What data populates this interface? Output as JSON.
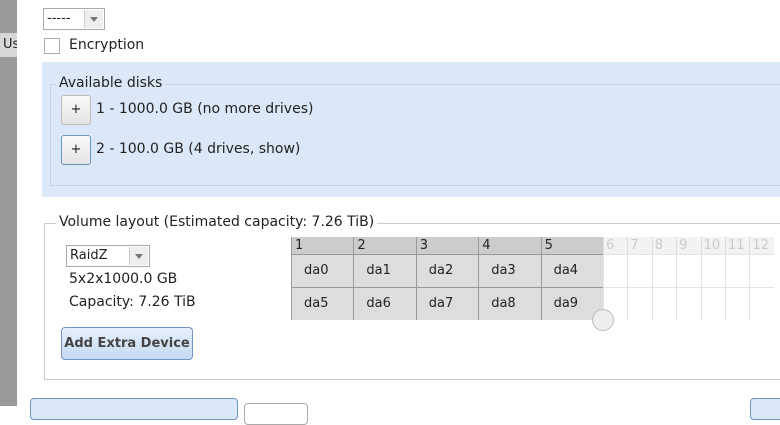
{
  "sidebar": {
    "text": "Us"
  },
  "top_select": {
    "value": "-----"
  },
  "encryption": {
    "label": "Encryption"
  },
  "available_disks": {
    "legend": "Available disks",
    "button": "+",
    "items": [
      "1 - 1000.0 GB (no more drives)",
      "2 - 100.0 GB (4 drives, show)"
    ]
  },
  "volume_layout": {
    "legend": "Volume layout (Estimated capacity: 7.26 TiB)",
    "raid_select": "RaidZ",
    "summary": "5x2x1000.0 GB",
    "capacity": "Capacity: 7.26 TiB",
    "add_button": "Add Extra Device",
    "grid": {
      "active_columns": [
        "1",
        "2",
        "3",
        "4",
        "5"
      ],
      "inactive_columns": [
        "6",
        "7",
        "8",
        "9",
        "10",
        "11",
        "12"
      ],
      "rows": [
        [
          "da0",
          "da1",
          "da2",
          "da3",
          "da4"
        ],
        [
          "da5",
          "da6",
          "da7",
          "da8",
          "da9"
        ]
      ]
    }
  }
}
